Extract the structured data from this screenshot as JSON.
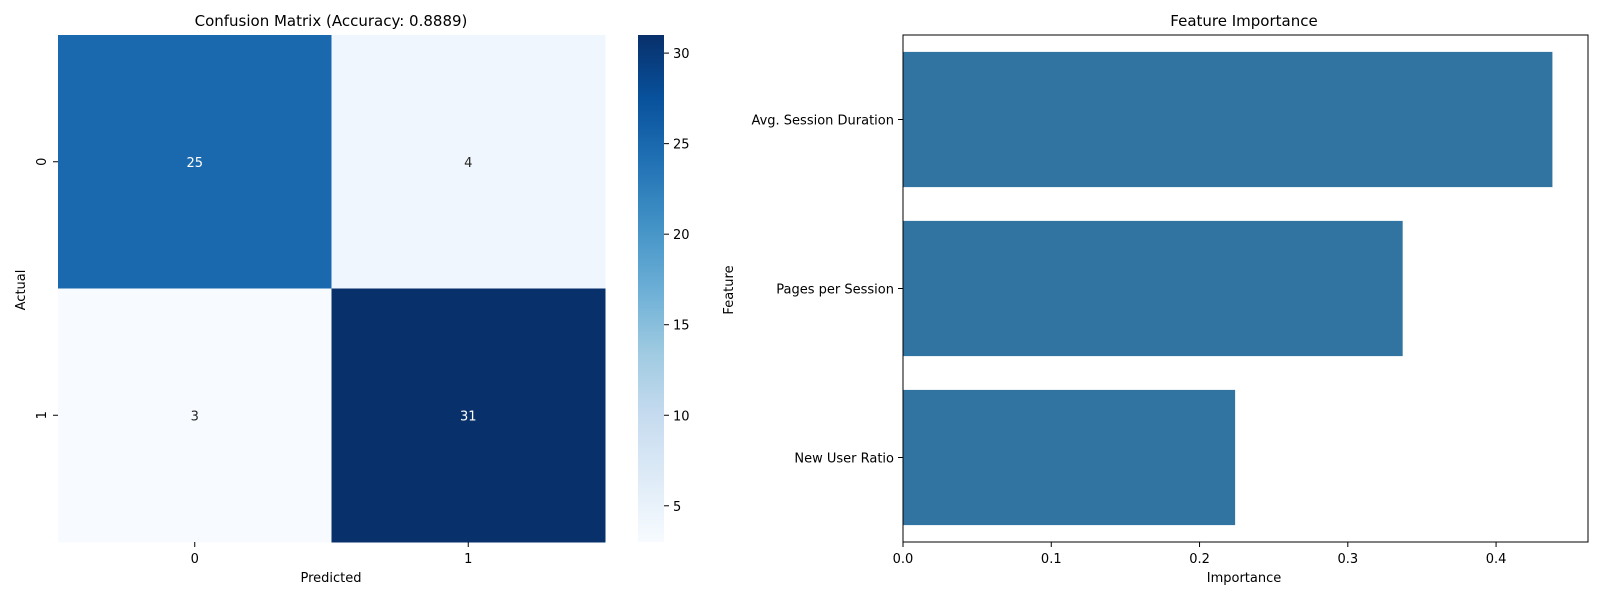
{
  "chart_data": [
    {
      "type": "heatmap",
      "title": "Confusion Matrix (Accuracy: 0.8889)",
      "xlabel": "Predicted",
      "ylabel": "Actual",
      "x_categories": [
        "0",
        "1"
      ],
      "y_categories": [
        "0",
        "1"
      ],
      "values": [
        [
          25,
          4
        ],
        [
          3,
          31
        ]
      ],
      "annotations": true,
      "colormap": "Blues",
      "colorbar": {
        "range": [
          3,
          31
        ],
        "ticks": [
          5,
          10,
          15,
          20,
          25,
          30
        ],
        "tick_labels": [
          "5",
          "10",
          "15",
          "20",
          "25",
          "30"
        ]
      },
      "colors": {
        "low": "#f7fbff",
        "high": "#08306b",
        "annotation_light_text": "#ffffff",
        "annotation_dark_text": "#262626"
      },
      "grid": false
    },
    {
      "type": "bar",
      "orientation": "horizontal",
      "title": "Feature Importance",
      "xlabel": "Importance",
      "ylabel": "Feature",
      "categories": [
        "Avg. Session Duration",
        "Pages per Session",
        "New User Ratio"
      ],
      "values": [
        0.438,
        0.337,
        0.224
      ],
      "xlim": [
        0,
        0.462
      ],
      "x_ticks": [
        0,
        0.1,
        0.2,
        0.3,
        0.4
      ],
      "x_tick_labels": [
        "0.0",
        "0.1",
        "0.2",
        "0.3",
        "0.4"
      ],
      "colors": {
        "bar": "#3274a1"
      },
      "grid": false
    }
  ]
}
